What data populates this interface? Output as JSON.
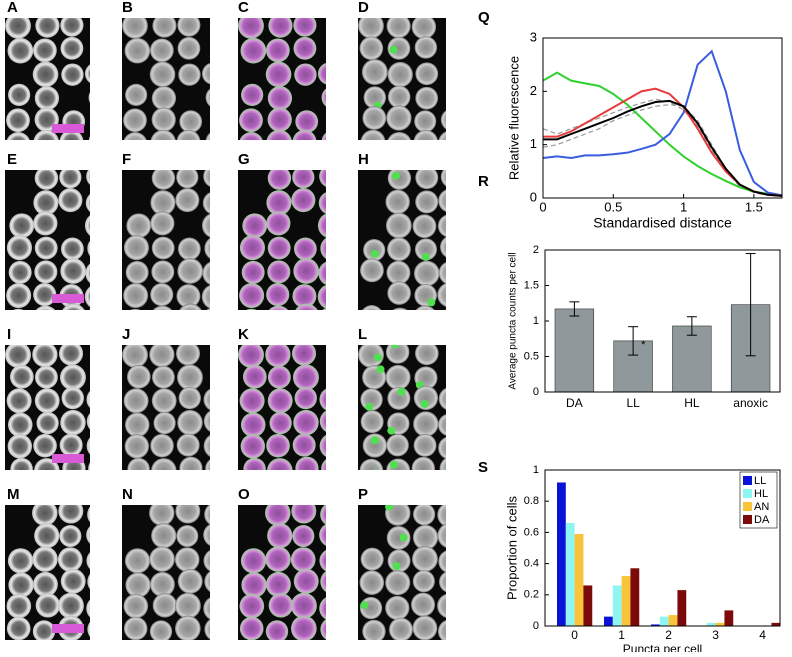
{
  "panel_labels": [
    "A",
    "B",
    "C",
    "D",
    "E",
    "F",
    "G",
    "H",
    "I",
    "J",
    "K",
    "L",
    "M",
    "N",
    "O",
    "P"
  ],
  "chart_data": [
    {
      "type": "line",
      "label": "Q",
      "xlabel": "Standardised distance",
      "ylabel": "Relative fluorescence",
      "x": [
        0,
        0.1,
        0.2,
        0.3,
        0.4,
        0.5,
        0.6,
        0.7,
        0.8,
        0.9,
        1.0,
        1.1,
        1.2,
        1.3,
        1.4,
        1.5,
        1.6,
        1.7
      ],
      "xlim": [
        0,
        1.7
      ],
      "ylim": [
        0,
        3
      ],
      "xticks": [
        0,
        0.5,
        1,
        1.5
      ],
      "yticks": [
        0,
        1,
        2,
        3
      ],
      "series": [
        {
          "color": "#999999",
          "dash": true,
          "values": [
            1.3,
            1.2,
            1.3,
            1.4,
            1.5,
            1.6,
            1.7,
            1.78,
            1.85,
            1.8,
            1.65,
            1.35,
            0.9,
            0.5,
            0.22,
            0.1,
            0.05,
            0.03
          ]
        },
        {
          "color": "#999999",
          "dash": true,
          "values": [
            0.95,
            1.0,
            1.1,
            1.2,
            1.3,
            1.45,
            1.55,
            1.65,
            1.72,
            1.75,
            1.72,
            1.45,
            1.0,
            0.55,
            0.25,
            0.12,
            0.06,
            0.04
          ]
        },
        {
          "color": "#2fd12f",
          "values": [
            2.2,
            2.35,
            2.2,
            2.15,
            2.1,
            1.95,
            1.75,
            1.5,
            1.25,
            1.0,
            0.78,
            0.6,
            0.45,
            0.32,
            0.2,
            0.12,
            0.08,
            0.05
          ]
        },
        {
          "color": "#3a5de0",
          "values": [
            0.75,
            0.78,
            0.75,
            0.8,
            0.8,
            0.82,
            0.85,
            0.92,
            1.0,
            1.2,
            1.6,
            2.5,
            2.75,
            2.0,
            0.9,
            0.3,
            0.1,
            0.05
          ]
        },
        {
          "color": "#e83a3a",
          "values": [
            1.15,
            1.15,
            1.25,
            1.4,
            1.55,
            1.7,
            1.85,
            2.0,
            2.05,
            1.95,
            1.7,
            1.3,
            0.85,
            0.5,
            0.25,
            0.12,
            0.06,
            0.04
          ]
        },
        {
          "color": "#000000",
          "values": [
            1.1,
            1.1,
            1.2,
            1.3,
            1.4,
            1.5,
            1.62,
            1.72,
            1.8,
            1.82,
            1.72,
            1.4,
            0.95,
            0.55,
            0.25,
            0.12,
            0.06,
            0.04
          ]
        }
      ]
    },
    {
      "type": "errorbar",
      "label": "R",
      "ylabel": "Average puncta counts per cell",
      "categories": [
        "DA",
        "LL",
        "HL",
        "anoxic"
      ],
      "values": [
        1.17,
        0.72,
        0.93,
        1.23
      ],
      "errors": [
        0.1,
        0.2,
        0.13,
        0.72
      ],
      "color": "#8f999c",
      "annotation": "*",
      "ylim": [
        0,
        2
      ],
      "yticks": [
        0,
        0.5,
        1,
        1.5,
        2
      ]
    },
    {
      "type": "grouped",
      "label": "S",
      "xlabel": "Puncta per cell",
      "ylabel": "Proportion of cells",
      "categories": [
        "0",
        "1",
        "2",
        "3",
        "4"
      ],
      "ylim": [
        0,
        1
      ],
      "yticks": [
        0,
        0.2,
        0.4,
        0.6,
        0.8,
        1
      ],
      "legend": "top-right",
      "series": [
        {
          "name": "LL",
          "color": "#0a12d8",
          "values": [
            0.92,
            0.06,
            0.01,
            0,
            0
          ]
        },
        {
          "name": "HL",
          "color": "#8ff5f0",
          "values": [
            0.66,
            0.26,
            0.06,
            0.02,
            0
          ]
        },
        {
          "name": "AN",
          "color": "#f9c43a",
          "values": [
            0.59,
            0.32,
            0.07,
            0.02,
            0
          ]
        },
        {
          "name": "DA",
          "color": "#7d0a0a",
          "values": [
            0.26,
            0.37,
            0.23,
            0.1,
            0.02
          ]
        }
      ]
    }
  ]
}
